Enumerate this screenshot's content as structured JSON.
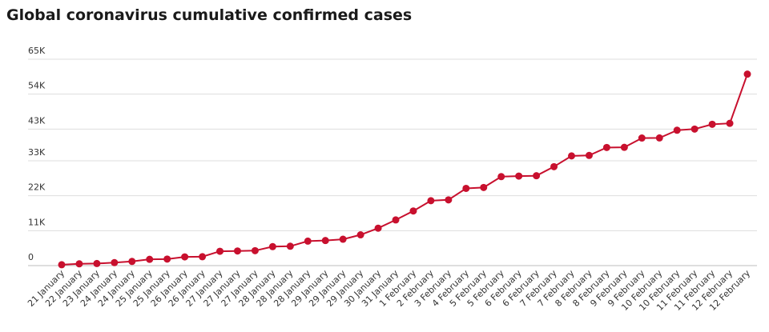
{
  "chart_data": {
    "type": "line",
    "title": "Global coronavirus cumulative confirmed cases",
    "xlabel": "",
    "ylabel": "",
    "categories": [
      "21 January",
      "22 January",
      "23 January",
      "24 January",
      "24 January",
      "25 January",
      "25 January",
      "26 January",
      "26 January",
      "27 January",
      "27 January",
      "27 January",
      "28 January",
      "28 January",
      "28 January",
      "29 January",
      "29 January",
      "29 January",
      "30 January",
      "31 January",
      "1 February",
      "2 February",
      "3 February",
      "4 February",
      "5 February",
      "5 February",
      "6 February",
      "6 February",
      "7 February",
      "7 February",
      "8 February",
      "8 February",
      "9 February",
      "9 February",
      "10 February",
      "10 February",
      "11 February",
      "11 February",
      "12 February",
      "12 February"
    ],
    "y_ticks": [
      0,
      11000,
      22000,
      33000,
      43000,
      54000,
      65000
    ],
    "y_tick_labels": [
      "0",
      "11K",
      "22K",
      "33K",
      "43K",
      "54K",
      "65K"
    ],
    "ylim": [
      0,
      65000
    ],
    "grid": true,
    "color": "#c8102e",
    "series": [
      {
        "values": [
          282,
          555,
          653,
          941,
          1320,
          1980,
          2050,
          2744,
          2800,
          4515,
          4600,
          4700,
          5974,
          6100,
          7711,
          7900,
          8300,
          9692,
          11791,
          14380,
          17205,
          20438,
          20700,
          24324,
          24600,
          28018,
          28200,
          28300,
          31161,
          34546,
          34700,
          37198,
          37250,
          40171,
          40200,
          42638,
          43000,
          44500,
          44800,
          60300
        ]
      }
    ]
  }
}
